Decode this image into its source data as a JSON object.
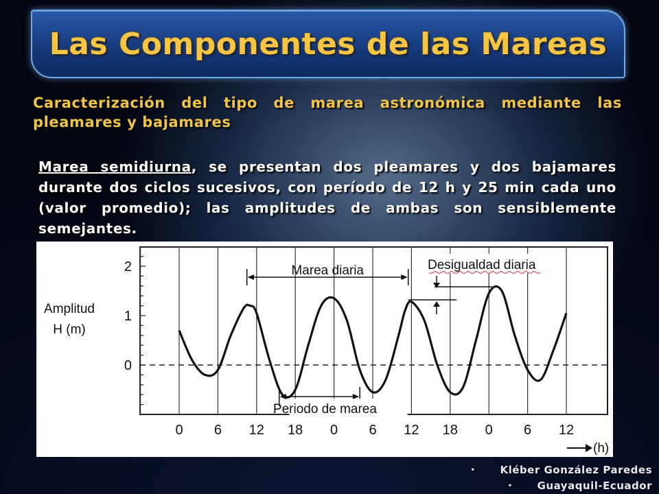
{
  "slide": {
    "title": "Las Componentes de las Mareas",
    "subtitle": "Caracterización del tipo de marea astronómica mediante las pleamares y bajamares",
    "body_term": "Marea semidiurna",
    "body_rest": ", se presentan dos pleamares y dos bajamares durante dos ciclos sucesivos, con período de 12 h y 25 min cada uno (valor promedio); las amplitudes de ambas son sensiblemente semejantes.",
    "credits": [
      "Kléber González Paredes",
      "Guayaquil-Ecuador"
    ],
    "bullet": "•"
  },
  "chart_data": {
    "type": "line",
    "ylabel_line1": "Amplitud",
    "ylabel_line2": "H (m)",
    "xlabel": "(h)",
    "y_ticks": [
      "2",
      "1",
      "0"
    ],
    "ylim": [
      -0.85,
      2.3
    ],
    "x_hours": [
      0,
      6,
      12,
      18,
      24,
      30,
      36,
      42,
      48,
      54,
      60
    ],
    "x_tick_labels": [
      "0",
      "6",
      "12",
      "18",
      "0",
      "6",
      "12",
      "18",
      "0",
      "6",
      "12"
    ],
    "annotations": {
      "daily_tide": "Marea diaria",
      "tide_period": "Periodo de marea",
      "daily_inequality": "Desigualdad diaria"
    },
    "series": [
      {
        "x": [
          0,
          2,
          4,
          6,
          8,
          10,
          11,
          12,
          14,
          16,
          18,
          20,
          22,
          24,
          26,
          28,
          30,
          32,
          34,
          35,
          36,
          38,
          40,
          42,
          44,
          46,
          48,
          50,
          52,
          54,
          56,
          58,
          60
        ],
        "y": [
          0.7,
          0.1,
          -0.2,
          -0.1,
          0.6,
          1.15,
          1.2,
          1.05,
          0.1,
          -0.6,
          -0.5,
          0.4,
          1.2,
          1.35,
          0.9,
          -0.1,
          -0.55,
          -0.3,
          0.6,
          1.1,
          1.28,
          0.9,
          0.0,
          -0.55,
          -0.45,
          0.5,
          1.45,
          1.5,
          0.6,
          -0.1,
          -0.3,
          0.3,
          1.05
        ]
      }
    ]
  }
}
